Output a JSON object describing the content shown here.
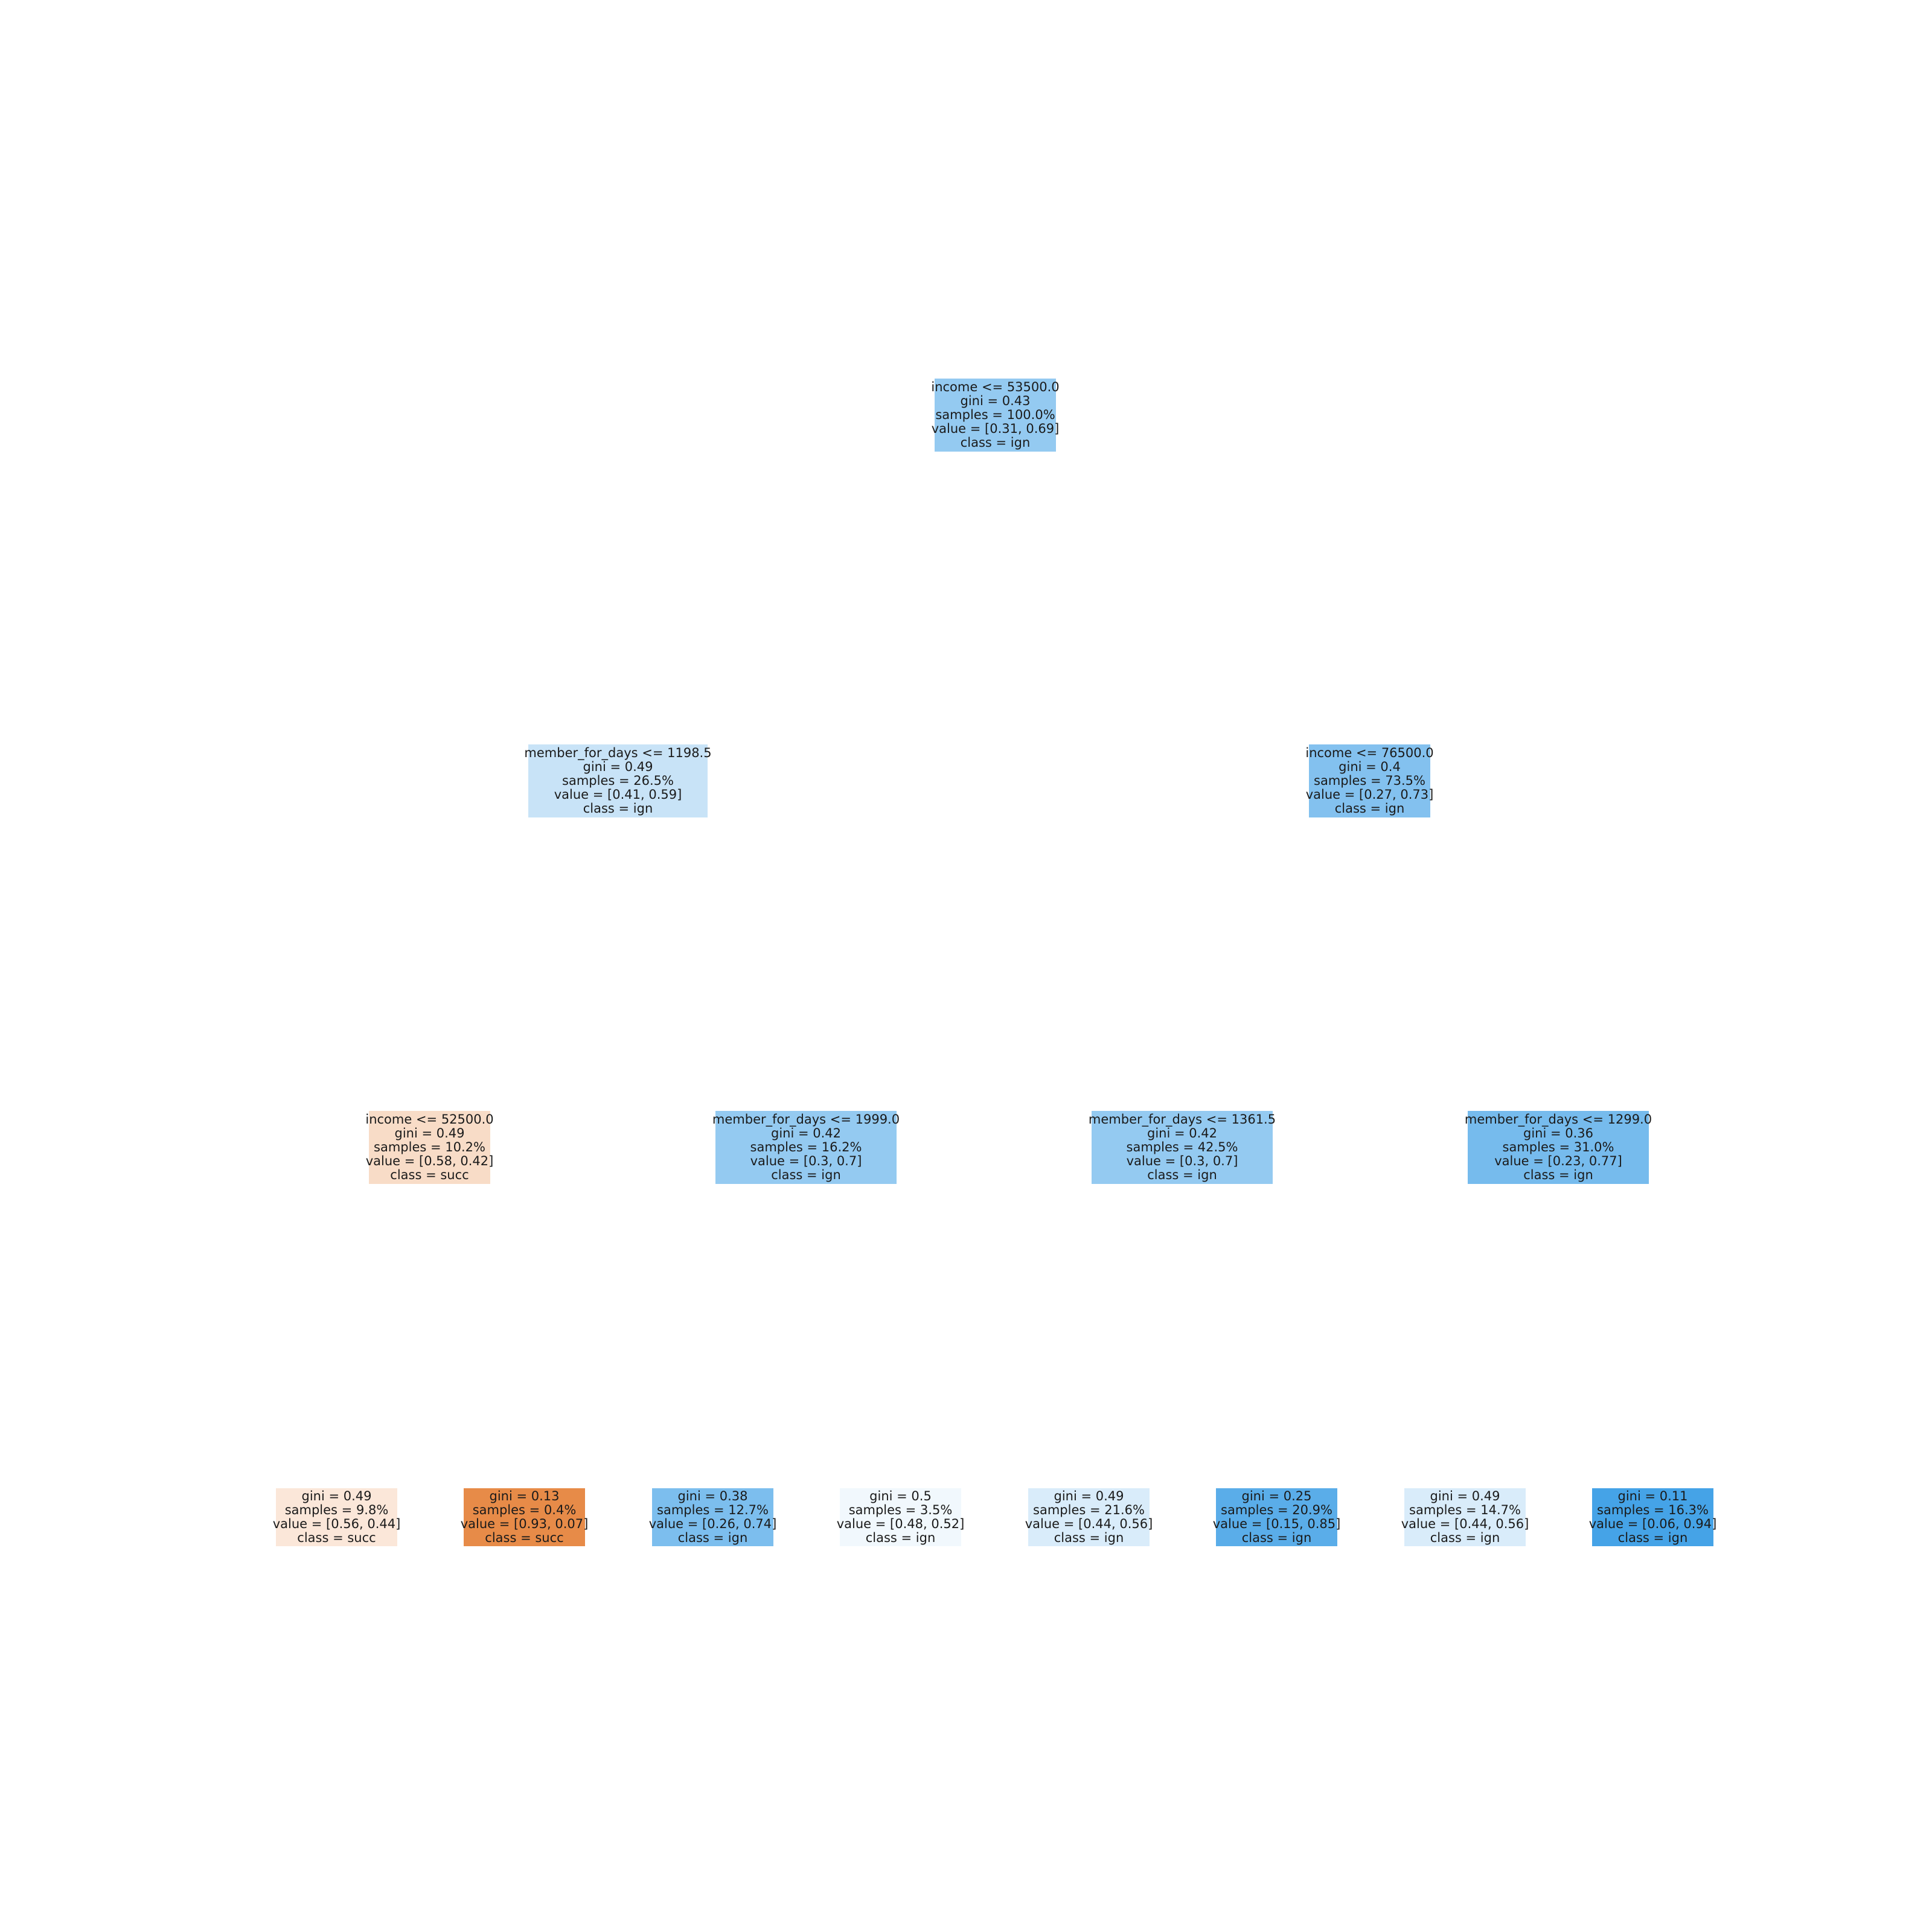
{
  "tree": {
    "nodes": [
      {
        "id": "n0",
        "lines": [
          "income <= 53500.0",
          "gini = 0.43",
          "samples = 100.0%",
          "value = [0.31, 0.69]",
          "class = ign"
        ],
        "color": "#94caf1"
      },
      {
        "id": "n1",
        "lines": [
          "member_for_days <= 1198.5",
          "gini = 0.49",
          "samples = 26.5%",
          "value = [0.41, 0.59]",
          "class = ign"
        ],
        "color": "#c8e3f7"
      },
      {
        "id": "n2",
        "lines": [
          "income <= 76500.0",
          "gini = 0.4",
          "samples = 73.5%",
          "value = [0.27, 0.73]",
          "class = ign"
        ],
        "color": "#83c1ef"
      },
      {
        "id": "n3",
        "lines": [
          "income <= 52500.0",
          "gini = 0.49",
          "samples = 10.2%",
          "value = [0.58, 0.42]",
          "class = succ"
        ],
        "color": "#f8dcc7"
      },
      {
        "id": "n4",
        "lines": [
          "member_for_days <= 1999.0",
          "gini = 0.42",
          "samples = 16.2%",
          "value = [0.3, 0.7]",
          "class = ign"
        ],
        "color": "#94caf1"
      },
      {
        "id": "n5",
        "lines": [
          "member_for_days <= 1361.5",
          "gini = 0.42",
          "samples = 42.5%",
          "value = [0.3, 0.7]",
          "class = ign"
        ],
        "color": "#94caf1"
      },
      {
        "id": "n6",
        "lines": [
          "member_for_days <= 1299.0",
          "gini = 0.36",
          "samples = 31.0%",
          "value = [0.23, 0.77]",
          "class = ign"
        ],
        "color": "#76bbed"
      },
      {
        "id": "n7",
        "lines": [
          "gini = 0.49",
          "samples = 9.8%",
          "value = [0.56, 0.44]",
          "class = succ"
        ],
        "color": "#fbe7d9"
      },
      {
        "id": "n8",
        "lines": [
          "gini = 0.13",
          "samples = 0.4%",
          "value = [0.93, 0.07]",
          "class = succ"
        ],
        "color": "#e78b48"
      },
      {
        "id": "n9",
        "lines": [
          "gini = 0.38",
          "samples = 12.7%",
          "value = [0.26, 0.74]",
          "class = ign"
        ],
        "color": "#7cbeee"
      },
      {
        "id": "n10",
        "lines": [
          "gini = 0.5",
          "samples = 3.5%",
          "value = [0.48, 0.52]",
          "class = ign"
        ],
        "color": "#f1f8fd"
      },
      {
        "id": "n11",
        "lines": [
          "gini = 0.49",
          "samples = 21.6%",
          "value = [0.44, 0.56]",
          "class = ign"
        ],
        "color": "#d9ecfa"
      },
      {
        "id": "n12",
        "lines": [
          "gini = 0.25",
          "samples = 20.9%",
          "value = [0.15, 0.85]",
          "class = ign"
        ],
        "color": "#5aade9"
      },
      {
        "id": "n13",
        "lines": [
          "gini = 0.49",
          "samples = 14.7%",
          "value = [0.44, 0.56]",
          "class = ign"
        ],
        "color": "#d9ecfa"
      },
      {
        "id": "n14",
        "lines": [
          "gini = 0.11",
          "samples = 16.3%",
          "value = [0.06, 0.94]",
          "class = ign"
        ],
        "color": "#45a3e7"
      }
    ]
  }
}
